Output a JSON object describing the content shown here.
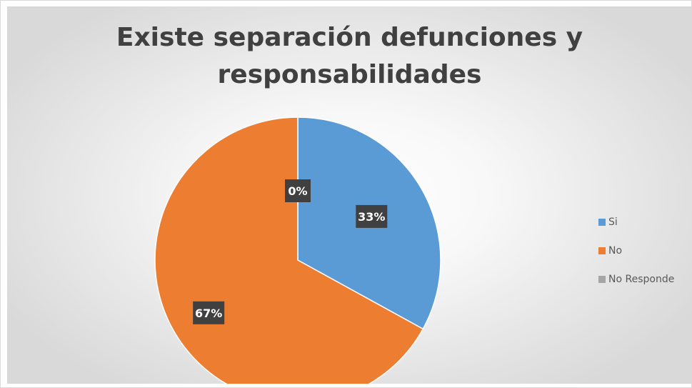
{
  "chart_data": {
    "type": "pie",
    "title": "Existe separación defunciones y responsabilidades",
    "categories": [
      "Si",
      "No",
      "No Responde"
    ],
    "values": [
      33,
      67,
      0
    ],
    "data_labels": [
      "33%",
      "67%",
      "0%"
    ],
    "colors": [
      "#5B9BD5",
      "#ED7D31",
      "#A5A5A5"
    ],
    "legend": {
      "position": "right",
      "entries": [
        "Si",
        "No",
        "No Responde"
      ]
    },
    "grid": false
  }
}
